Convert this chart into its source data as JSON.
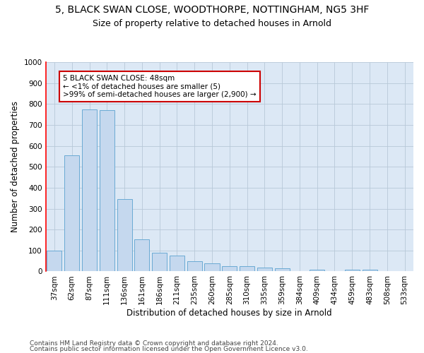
{
  "title1": "5, BLACK SWAN CLOSE, WOODTHORPE, NOTTINGHAM, NG5 3HF",
  "title2": "Size of property relative to detached houses in Arnold",
  "xlabel": "Distribution of detached houses by size in Arnold",
  "ylabel": "Number of detached properties",
  "categories": [
    "37sqm",
    "62sqm",
    "87sqm",
    "111sqm",
    "136sqm",
    "161sqm",
    "186sqm",
    "211sqm",
    "235sqm",
    "260sqm",
    "285sqm",
    "310sqm",
    "335sqm",
    "359sqm",
    "384sqm",
    "409sqm",
    "434sqm",
    "459sqm",
    "483sqm",
    "508sqm",
    "533sqm"
  ],
  "values": [
    100,
    555,
    775,
    770,
    345,
    155,
    90,
    75,
    50,
    40,
    25,
    25,
    20,
    15,
    0,
    8,
    0,
    8,
    8,
    0,
    0
  ],
  "bar_color": "#c5d8ee",
  "bar_edge_color": "#6aaad4",
  "annotation_box_color": "#ffffff",
  "annotation_box_edge_color": "#cc0000",
  "annotation_text": "5 BLACK SWAN CLOSE: 48sqm\n← <1% of detached houses are smaller (5)\n>99% of semi-detached houses are larger (2,900) →",
  "ylim": [
    0,
    1000
  ],
  "yticks": [
    0,
    100,
    200,
    300,
    400,
    500,
    600,
    700,
    800,
    900,
    1000
  ],
  "plot_bg_color": "#dce8f5",
  "grid_color": "#b8c8d8",
  "footer1": "Contains HM Land Registry data © Crown copyright and database right 2024.",
  "footer2": "Contains public sector information licensed under the Open Government Licence v3.0.",
  "title1_fontsize": 10,
  "title2_fontsize": 9,
  "xlabel_fontsize": 8.5,
  "ylabel_fontsize": 8.5,
  "tick_fontsize": 7.5,
  "annotation_fontsize": 7.5,
  "footer_fontsize": 6.5
}
